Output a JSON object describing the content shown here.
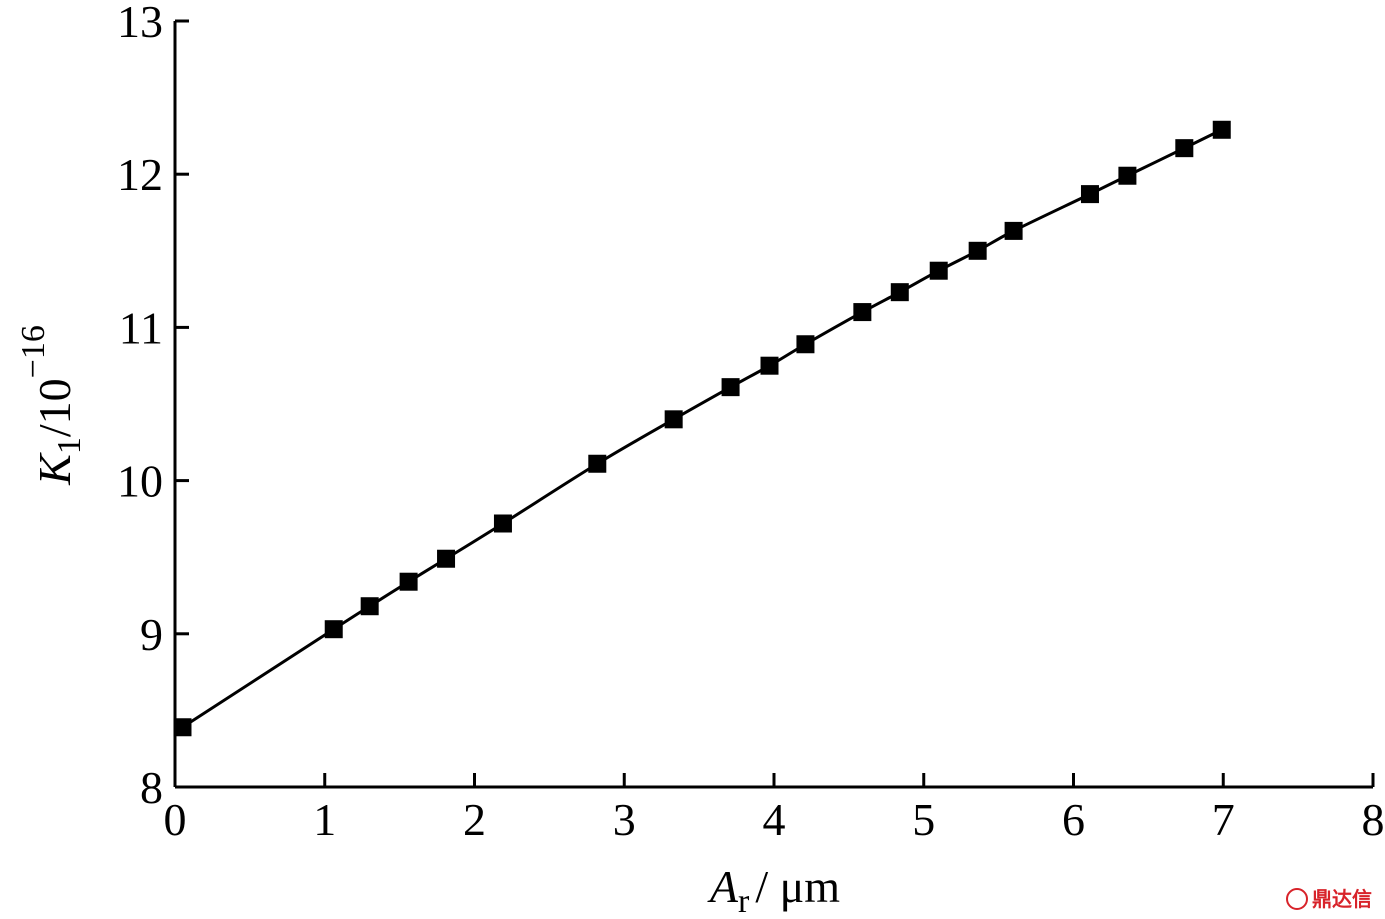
{
  "chart_data": {
    "type": "line",
    "x_label": {
      "symbol": "A",
      "subscript": "r",
      "unit": "/ μm"
    },
    "y_label": {
      "symbol": "K",
      "subscript": "1",
      "unit": "/10",
      "exponent": "−16"
    },
    "watermark": "鼎达信",
    "series": [
      {
        "color": "#000000",
        "marker": "square",
        "x": [
          0.05,
          1.06,
          1.3,
          1.56,
          1.81,
          2.19,
          2.82,
          3.33,
          3.71,
          3.97,
          4.21,
          4.59,
          4.84,
          5.1,
          5.36,
          5.6,
          6.11,
          6.36,
          6.74,
          6.99
        ],
        "values": [
          8.39,
          9.03,
          9.18,
          9.34,
          9.49,
          9.72,
          10.11,
          10.4,
          10.61,
          10.75,
          10.89,
          11.1,
          11.23,
          11.37,
          11.5,
          11.63,
          11.87,
          11.99,
          12.17,
          12.29
        ]
      }
    ],
    "xlim": [
      0,
      8
    ],
    "xticks": [
      0,
      1,
      2,
      3,
      4,
      5,
      6,
      7,
      8
    ],
    "ylim": [
      8,
      13
    ],
    "yticks": [
      8,
      9,
      10,
      11,
      12,
      13
    ],
    "grid": false
  }
}
